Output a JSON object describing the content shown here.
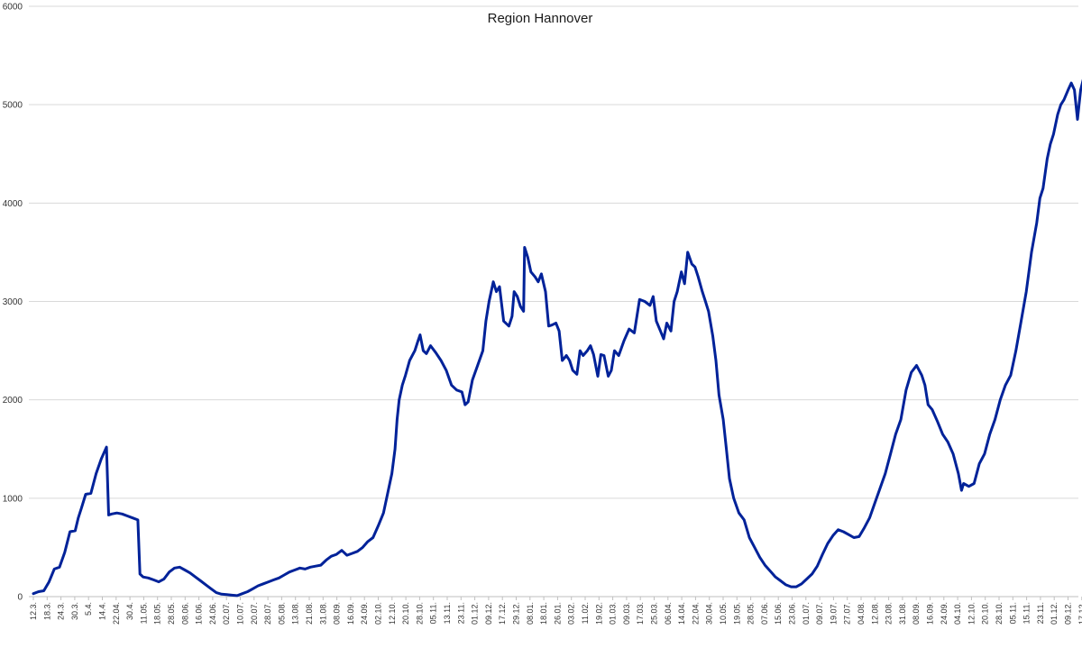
{
  "chart_data": {
    "type": "line",
    "title": "Region Hannover",
    "xlabel": "",
    "ylabel": "",
    "ylim": [
      0,
      6000
    ],
    "yticks": [
      0,
      1000,
      2000,
      3000,
      4000,
      5000,
      6000
    ],
    "grid": true,
    "legend": "none",
    "line_color": "#002299",
    "x_tick_labels": [
      "12.3.",
      "18.3.",
      "24.3.",
      "30.3.",
      "5.4.",
      "14.4.",
      "22.04.",
      "30.4.",
      "11.05.",
      "18.05.",
      "28.05.",
      "08.06.",
      "16.06.",
      "24.06.",
      "02.07.",
      "10.07.",
      "20.07.",
      "28.07.",
      "05.08.",
      "13.08.",
      "21.08.",
      "31.08.",
      "08.09.",
      "16.09.",
      "24.09.",
      "02.10.",
      "12.10.",
      "20.10.",
      "28.10.",
      "05.11.",
      "13.11.",
      "23.11.",
      "01.12.",
      "09.12.",
      "17.12.",
      "29.12.",
      "08.01.",
      "18.01.",
      "26.01.",
      "03.02.",
      "11.02.",
      "19.02.",
      "01.03.",
      "09.03.",
      "17.03.",
      "25.03.",
      "06.04.",
      "14.04.",
      "22.04.",
      "30.04.",
      "10.05.",
      "19.05.",
      "28.05.",
      "07.06.",
      "15.06.",
      "23.06.",
      "01.07.",
      "09.07.",
      "19.07.",
      "27.07.",
      "04.08.",
      "12.08.",
      "23.08.",
      "31.08.",
      "08.09.",
      "16.09.",
      "24.09.",
      "04.10.",
      "12.10.",
      "20.10.",
      "28.10.",
      "05.11.",
      "15.11.",
      "23.11.",
      "01.12.",
      "09.12.",
      "17.12."
    ],
    "series": [
      {
        "name": "",
        "values": [
          [
            0,
            30
          ],
          [
            0.5,
            50
          ],
          [
            1,
            60
          ],
          [
            1.5,
            150
          ],
          [
            2,
            280
          ],
          [
            2.5,
            300
          ],
          [
            3,
            450
          ],
          [
            3.5,
            660
          ],
          [
            4,
            670
          ],
          [
            4.3,
            800
          ],
          [
            4.6,
            900
          ],
          [
            5,
            1040
          ],
          [
            5.5,
            1050
          ],
          [
            6,
            1250
          ],
          [
            6.5,
            1400
          ],
          [
            7,
            1520
          ],
          [
            7.2,
            830
          ],
          [
            7.5,
            840
          ],
          [
            8,
            850
          ],
          [
            8.5,
            840
          ],
          [
            9,
            820
          ],
          [
            9.5,
            800
          ],
          [
            10,
            780
          ],
          [
            10.2,
            230
          ],
          [
            10.5,
            200
          ],
          [
            11,
            190
          ],
          [
            11.5,
            170
          ],
          [
            12,
            150
          ],
          [
            12.5,
            180
          ],
          [
            13,
            250
          ],
          [
            13.5,
            290
          ],
          [
            14,
            300
          ],
          [
            14.5,
            270
          ],
          [
            15,
            240
          ],
          [
            15.5,
            200
          ],
          [
            16,
            160
          ],
          [
            16.5,
            120
          ],
          [
            17,
            80
          ],
          [
            17.5,
            40
          ],
          [
            18,
            25
          ],
          [
            18.5,
            20
          ],
          [
            19,
            15
          ],
          [
            19.5,
            10
          ],
          [
            20,
            30
          ],
          [
            20.5,
            50
          ],
          [
            21,
            80
          ],
          [
            21.5,
            110
          ],
          [
            22,
            130
          ],
          [
            22.5,
            150
          ],
          [
            23,
            170
          ],
          [
            23.5,
            190
          ],
          [
            24,
            220
          ],
          [
            24.5,
            250
          ],
          [
            25,
            270
          ],
          [
            25.5,
            290
          ],
          [
            26,
            280
          ],
          [
            26.5,
            300
          ],
          [
            27,
            310
          ],
          [
            27.5,
            320
          ],
          [
            28,
            370
          ],
          [
            28.5,
            410
          ],
          [
            29,
            430
          ],
          [
            29.5,
            470
          ],
          [
            30,
            420
          ],
          [
            30.5,
            440
          ],
          [
            31,
            460
          ],
          [
            31.5,
            500
          ],
          [
            32,
            560
          ],
          [
            32.5,
            600
          ],
          [
            33,
            720
          ],
          [
            33.5,
            850
          ],
          [
            34,
            1100
          ],
          [
            34.3,
            1250
          ],
          [
            34.6,
            1500
          ],
          [
            34.8,
            1800
          ],
          [
            35,
            2000
          ],
          [
            35.3,
            2150
          ],
          [
            35.6,
            2250
          ],
          [
            36,
            2400
          ],
          [
            36.5,
            2500
          ],
          [
            36.8,
            2600
          ],
          [
            37,
            2660
          ],
          [
            37.3,
            2500
          ],
          [
            37.6,
            2470
          ],
          [
            38,
            2550
          ],
          [
            38.5,
            2480
          ],
          [
            39,
            2400
          ],
          [
            39.5,
            2300
          ],
          [
            40,
            2150
          ],
          [
            40.5,
            2100
          ],
          [
            41,
            2080
          ],
          [
            41.3,
            1950
          ],
          [
            41.6,
            1980
          ],
          [
            42,
            2200
          ],
          [
            42.5,
            2350
          ],
          [
            43,
            2500
          ],
          [
            43.3,
            2800
          ],
          [
            43.6,
            3000
          ],
          [
            44,
            3200
          ],
          [
            44.3,
            3100
          ],
          [
            44.6,
            3150
          ],
          [
            45,
            2800
          ],
          [
            45.5,
            2750
          ],
          [
            45.8,
            2850
          ],
          [
            46,
            3100
          ],
          [
            46.3,
            3050
          ],
          [
            46.6,
            2950
          ],
          [
            46.9,
            2900
          ],
          [
            47,
            3550
          ],
          [
            47.3,
            3450
          ],
          [
            47.6,
            3300
          ],
          [
            48,
            3250
          ],
          [
            48.3,
            3200
          ],
          [
            48.6,
            3280
          ],
          [
            49,
            3100
          ],
          [
            49.3,
            2750
          ],
          [
            49.6,
            2760
          ],
          [
            50,
            2780
          ],
          [
            50.3,
            2700
          ],
          [
            50.6,
            2400
          ],
          [
            51,
            2450
          ],
          [
            51.3,
            2400
          ],
          [
            51.6,
            2300
          ],
          [
            52,
            2260
          ],
          [
            52.3,
            2500
          ],
          [
            52.6,
            2450
          ],
          [
            53,
            2500
          ],
          [
            53.3,
            2550
          ],
          [
            53.6,
            2460
          ],
          [
            54,
            2240
          ],
          [
            54.3,
            2460
          ],
          [
            54.6,
            2450
          ],
          [
            55,
            2240
          ],
          [
            55.3,
            2300
          ],
          [
            55.6,
            2500
          ],
          [
            56,
            2450
          ],
          [
            56.5,
            2600
          ],
          [
            57,
            2720
          ],
          [
            57.5,
            2680
          ],
          [
            58,
            3020
          ],
          [
            58.5,
            3000
          ],
          [
            59,
            2960
          ],
          [
            59.3,
            3050
          ],
          [
            59.6,
            2800
          ],
          [
            60,
            2700
          ],
          [
            60.3,
            2620
          ],
          [
            60.6,
            2780
          ],
          [
            61,
            2700
          ],
          [
            61.3,
            3000
          ],
          [
            61.6,
            3100
          ],
          [
            62,
            3300
          ],
          [
            62.3,
            3180
          ],
          [
            62.6,
            3500
          ],
          [
            63,
            3380
          ],
          [
            63.3,
            3350
          ],
          [
            63.6,
            3250
          ],
          [
            64,
            3100
          ],
          [
            64.3,
            3000
          ],
          [
            64.6,
            2900
          ],
          [
            65,
            2650
          ],
          [
            65.3,
            2400
          ],
          [
            65.6,
            2050
          ],
          [
            66,
            1800
          ],
          [
            66.3,
            1500
          ],
          [
            66.6,
            1200
          ],
          [
            67,
            1000
          ],
          [
            67.5,
            850
          ],
          [
            68,
            780
          ],
          [
            68.5,
            600
          ],
          [
            69,
            500
          ],
          [
            69.5,
            400
          ],
          [
            70,
            320
          ],
          [
            70.5,
            260
          ],
          [
            71,
            200
          ],
          [
            71.5,
            160
          ],
          [
            72,
            120
          ],
          [
            72.5,
            100
          ],
          [
            73,
            100
          ],
          [
            73.5,
            130
          ],
          [
            74,
            180
          ],
          [
            74.5,
            230
          ],
          [
            75,
            310
          ],
          [
            75.5,
            430
          ],
          [
            76,
            540
          ],
          [
            76.5,
            620
          ],
          [
            77,
            680
          ],
          [
            77.5,
            660
          ],
          [
            78,
            630
          ],
          [
            78.5,
            600
          ],
          [
            79,
            610
          ],
          [
            79.5,
            700
          ],
          [
            80,
            800
          ],
          [
            80.5,
            950
          ],
          [
            81,
            1100
          ],
          [
            81.5,
            1250
          ],
          [
            82,
            1450
          ],
          [
            82.5,
            1650
          ],
          [
            83,
            1800
          ],
          [
            83.5,
            2100
          ],
          [
            84,
            2280
          ],
          [
            84.5,
            2350
          ],
          [
            85,
            2250
          ],
          [
            85.3,
            2150
          ],
          [
            85.6,
            1950
          ],
          [
            86,
            1900
          ],
          [
            86.5,
            1780
          ],
          [
            87,
            1650
          ],
          [
            87.5,
            1570
          ],
          [
            88,
            1450
          ],
          [
            88.5,
            1250
          ],
          [
            88.8,
            1080
          ],
          [
            89,
            1150
          ],
          [
            89.5,
            1120
          ],
          [
            90,
            1150
          ],
          [
            90.5,
            1350
          ],
          [
            91,
            1450
          ],
          [
            91.5,
            1650
          ],
          [
            92,
            1800
          ],
          [
            92.5,
            2000
          ],
          [
            93,
            2150
          ],
          [
            93.5,
            2250
          ],
          [
            94,
            2500
          ],
          [
            94.5,
            2800
          ],
          [
            95,
            3100
          ],
          [
            95.5,
            3500
          ],
          [
            96,
            3800
          ],
          [
            96.3,
            4050
          ],
          [
            96.6,
            4150
          ],
          [
            97,
            4450
          ],
          [
            97.3,
            4600
          ],
          [
            97.6,
            4700
          ],
          [
            98,
            4900
          ],
          [
            98.3,
            5000
          ],
          [
            98.6,
            5050
          ],
          [
            99,
            5150
          ],
          [
            99.3,
            5220
          ],
          [
            99.6,
            5150
          ],
          [
            99.9,
            4850
          ],
          [
            100.2,
            5150
          ],
          [
            100.5,
            5280
          ],
          [
            100.8,
            5180
          ],
          [
            101,
            5080
          ]
        ]
      }
    ]
  }
}
